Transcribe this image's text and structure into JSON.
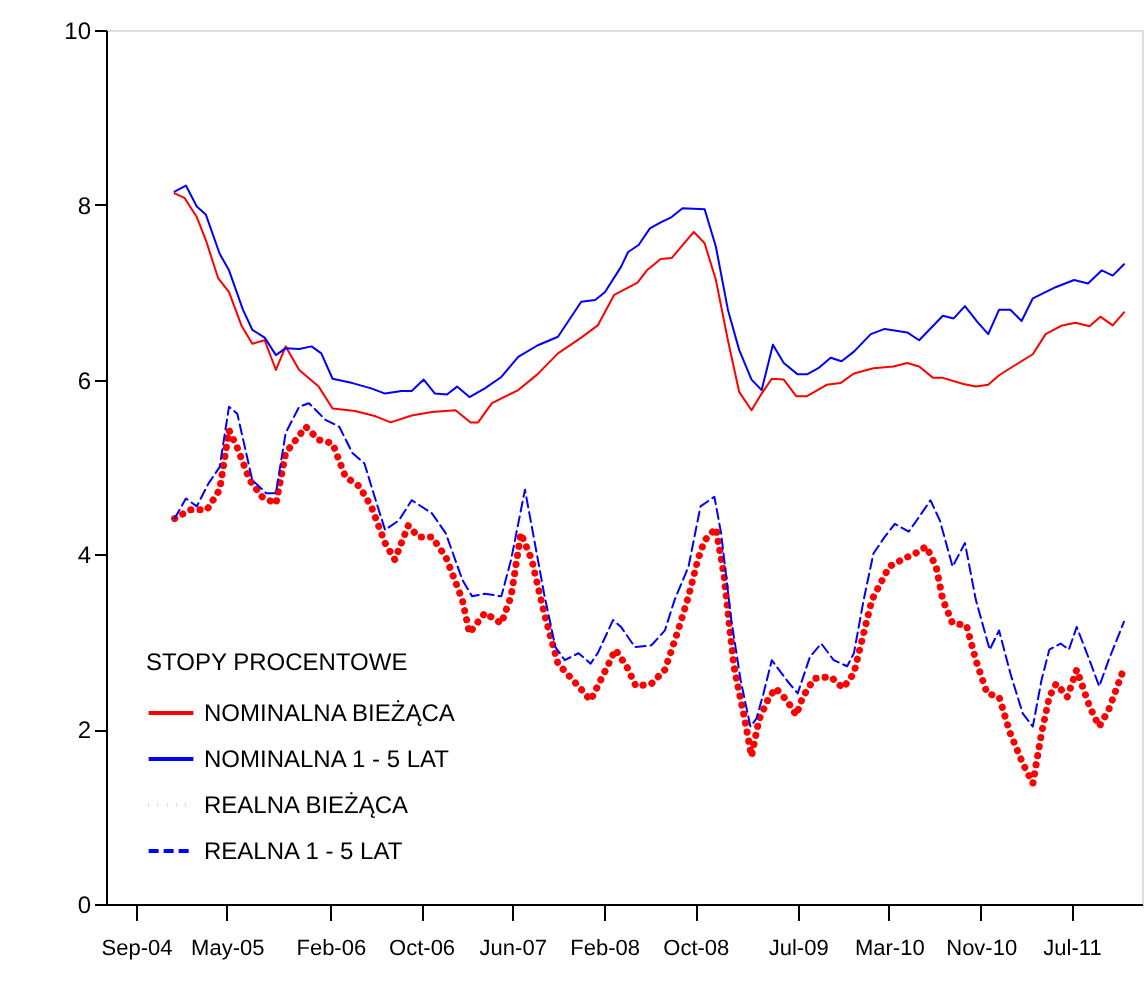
{
  "chart_data": {
    "type": "line",
    "xlim": [
      "2004-06-13",
      "2012-01-05"
    ],
    "xticks": [
      {
        "value": "2004-09-01",
        "label": "Sep-04"
      },
      {
        "value": "2005-05-01",
        "label": "May-05"
      },
      {
        "value": "2006-02-01",
        "label": "Feb-06"
      },
      {
        "value": "2006-10-01",
        "label": "Oct-06"
      },
      {
        "value": "2007-06-01",
        "label": "Jun-07"
      },
      {
        "value": "2008-02-01",
        "label": "Feb-08"
      },
      {
        "value": "2008-10-01",
        "label": "Oct-08"
      },
      {
        "value": "2009-07-01",
        "label": "Jul-09"
      },
      {
        "value": "2010-03-01",
        "label": "Mar-10"
      },
      {
        "value": "2010-11-01",
        "label": "Nov-10"
      },
      {
        "value": "2011-07-01",
        "label": "Jul-11"
      }
    ],
    "ylim": [
      0,
      10
    ],
    "yticks": [
      0,
      2,
      4,
      6,
      8,
      10
    ],
    "grid": false,
    "legend": "bottom left",
    "legend_title": "STOPY PROCENTOWE",
    "series": [
      {
        "name": "NOMINALNA BIEŻĄCA",
        "color": "#ff0000",
        "line_style": "solid",
        "x": [
          "2004-12-13",
          "2005-01-08",
          "2005-02-10",
          "2005-03-06",
          "2005-04-08",
          "2005-05-07",
          "2005-06-09",
          "2005-07-08",
          "2005-08-10",
          "2005-09-09",
          "2005-10-05",
          "2005-11-10",
          "2006-01-01",
          "2006-02-07",
          "2006-04-08",
          "2006-06-02",
          "2006-07-12",
          "2006-09-06",
          "2006-10-30",
          "2007-01-01",
          "2007-02-10",
          "2007-03-02",
          "2007-04-08",
          "2007-06-17",
          "2007-08-07",
          "2007-10-01",
          "2007-12-02",
          "2008-01-15",
          "2008-02-28",
          "2008-04-30",
          "2008-05-25",
          "2008-07-01",
          "2008-07-30",
          "2008-09-27",
          "2008-10-26",
          "2008-11-25",
          "2008-12-27",
          "2009-01-26",
          "2009-02-28",
          "2009-03-27",
          "2009-04-23",
          "2009-05-25",
          "2009-06-27",
          "2009-07-26",
          "2009-09-16",
          "2009-10-23",
          "2009-11-28",
          "2010-01-19",
          "2010-03-13",
          "2010-04-19",
          "2010-05-21",
          "2010-06-27",
          "2010-07-23",
          "2010-09-16",
          "2010-10-19",
          "2010-11-21",
          "2010-12-20",
          "2011-01-26",
          "2011-03-20",
          "2011-04-23",
          "2011-06-06",
          "2011-07-12",
          "2011-08-18",
          "2011-09-16",
          "2011-10-19",
          "2011-11-18"
        ],
        "values": [
          8.13,
          8.08,
          7.86,
          7.6,
          7.16,
          7.0,
          6.62,
          6.41,
          6.45,
          6.11,
          6.38,
          6.11,
          5.92,
          5.67,
          5.64,
          5.58,
          5.51,
          5.59,
          5.63,
          5.65,
          5.51,
          5.51,
          5.73,
          5.88,
          6.06,
          6.3,
          6.48,
          6.62,
          6.97,
          7.11,
          7.25,
          7.38,
          7.39,
          7.69,
          7.56,
          7.14,
          6.45,
          5.86,
          5.65,
          5.84,
          6.01,
          6.0,
          5.81,
          5.81,
          5.94,
          5.96,
          6.07,
          6.13,
          6.15,
          6.19,
          6.15,
          6.02,
          6.02,
          5.95,
          5.92,
          5.94,
          6.05,
          6.15,
          6.29,
          6.52,
          6.62,
          6.65,
          6.61,
          6.72,
          6.62,
          6.77
        ]
      },
      {
        "name": "NOMINALNA 1 - 5 LAT",
        "color": "#0000ff",
        "line_style": "solid",
        "x": [
          "2004-12-13",
          "2005-01-12",
          "2005-02-10",
          "2005-03-06",
          "2005-04-12",
          "2005-05-07",
          "2005-06-13",
          "2005-07-08",
          "2005-08-10",
          "2005-09-09",
          "2005-10-05",
          "2005-11-10",
          "2005-12-13",
          "2006-01-08",
          "2006-02-07",
          "2006-04-01",
          "2006-05-21",
          "2006-06-27",
          "2006-08-10",
          "2006-09-06",
          "2006-10-08",
          "2006-11-07",
          "2006-12-09",
          "2007-01-05",
          "2007-02-07",
          "2007-03-20",
          "2007-05-03",
          "2007-06-17",
          "2007-08-07",
          "2007-10-01",
          "2007-12-02",
          "2008-01-08",
          "2008-02-03",
          "2008-03-17",
          "2008-04-05",
          "2008-05-03",
          "2008-06-02",
          "2008-07-01",
          "2008-07-30",
          "2008-08-28",
          "2008-10-26",
          "2008-11-25",
          "2008-12-27",
          "2009-01-26",
          "2009-02-28",
          "2009-03-27",
          "2009-04-26",
          "2009-05-25",
          "2009-07-01",
          "2009-07-26",
          "2009-08-25",
          "2009-09-27",
          "2009-10-26",
          "2009-11-28",
          "2010-01-12",
          "2010-02-18",
          "2010-04-19",
          "2010-05-21",
          "2010-07-23",
          "2010-08-21",
          "2010-09-20",
          "2010-10-23",
          "2010-11-21",
          "2010-12-20",
          "2011-01-19",
          "2011-02-18",
          "2011-03-20",
          "2011-05-21",
          "2011-07-08",
          "2011-08-14",
          "2011-09-20",
          "2011-10-19",
          "2011-11-18"
        ],
        "values": [
          8.15,
          8.22,
          7.98,
          7.89,
          7.44,
          7.25,
          6.8,
          6.57,
          6.48,
          6.28,
          6.36,
          6.35,
          6.38,
          6.3,
          6.01,
          5.96,
          5.9,
          5.84,
          5.87,
          5.87,
          6.0,
          5.84,
          5.83,
          5.92,
          5.8,
          5.9,
          6.03,
          6.26,
          6.39,
          6.49,
          6.89,
          6.91,
          7.0,
          7.29,
          7.46,
          7.54,
          7.73,
          7.8,
          7.86,
          7.96,
          7.95,
          7.52,
          6.8,
          6.34,
          6.0,
          5.88,
          6.4,
          6.19,
          6.06,
          6.06,
          6.13,
          6.25,
          6.21,
          6.32,
          6.52,
          6.58,
          6.54,
          6.45,
          6.73,
          6.7,
          6.84,
          6.66,
          6.52,
          6.8,
          6.8,
          6.67,
          6.93,
          7.06,
          7.14,
          7.1,
          7.25,
          7.19,
          7.32
        ]
      },
      {
        "name": "REALNA BIEŻĄCA",
        "color": "#ff0000",
        "line_style": "dotted",
        "x": [
          "2004-12-13",
          "2005-01-23",
          "2005-03-09",
          "2005-04-12",
          "2005-05-07",
          "2005-05-29",
          "2005-07-01",
          "2005-08-03",
          "2005-09-09",
          "2005-10-05",
          "2005-11-28",
          "2006-01-01",
          "2006-02-07",
          "2006-03-13",
          "2006-04-19",
          "2006-05-21",
          "2006-06-27",
          "2006-07-23",
          "2006-08-28",
          "2006-09-24",
          "2006-10-30",
          "2006-12-06",
          "2007-01-19",
          "2007-02-07",
          "2007-03-20",
          "2007-05-03",
          "2007-05-29",
          "2007-06-24",
          "2007-07-23",
          "2007-08-25",
          "2007-10-01",
          "2007-11-25",
          "2007-12-27",
          "2008-02-10",
          "2008-03-02",
          "2008-04-01",
          "2008-04-26",
          "2008-06-06",
          "2008-07-12",
          "2008-08-14",
          "2008-09-13",
          "2008-10-08",
          "2008-10-26",
          "2008-11-25",
          "2008-12-16",
          "2009-01-12",
          "2009-02-10",
          "2009-02-28",
          "2009-03-20",
          "2009-04-12",
          "2009-05-03",
          "2009-06-02",
          "2009-06-27",
          "2009-07-15",
          "2009-08-14",
          "2009-09-27",
          "2009-10-30",
          "2009-11-28",
          "2009-12-24",
          "2010-01-15",
          "2010-02-07",
          "2010-03-02",
          "2010-04-05",
          "2010-05-10",
          "2010-06-09",
          "2010-07-05",
          "2010-07-23",
          "2010-08-18",
          "2010-09-24",
          "2010-10-19",
          "2010-11-18",
          "2010-12-20",
          "2011-01-19",
          "2011-02-21",
          "2011-03-20",
          "2011-04-12",
          "2011-05-03",
          "2011-05-21",
          "2011-06-20",
          "2011-07-15",
          "2011-08-18",
          "2011-09-13",
          "2011-10-08",
          "2011-11-14"
        ],
        "values": [
          4.41,
          4.51,
          4.51,
          4.74,
          5.42,
          5.22,
          4.85,
          4.66,
          4.58,
          5.16,
          5.46,
          5.31,
          5.27,
          4.89,
          4.78,
          4.55,
          4.13,
          3.94,
          4.33,
          4.2,
          4.2,
          3.97,
          3.48,
          3.1,
          3.33,
          3.21,
          3.52,
          4.24,
          3.94,
          3.33,
          2.75,
          2.49,
          2.33,
          2.72,
          2.91,
          2.72,
          2.49,
          2.52,
          2.68,
          3.1,
          3.52,
          3.94,
          4.16,
          4.3,
          3.78,
          2.72,
          2.11,
          1.69,
          2.11,
          2.33,
          2.47,
          2.33,
          2.16,
          2.37,
          2.58,
          2.6,
          2.47,
          2.64,
          3.1,
          3.48,
          3.67,
          3.86,
          3.94,
          4.01,
          4.09,
          3.86,
          3.48,
          3.21,
          3.19,
          2.79,
          2.41,
          2.37,
          1.95,
          1.61,
          1.38,
          1.95,
          2.37,
          2.52,
          2.37,
          2.68,
          2.26,
          2.03,
          2.22,
          2.65
        ]
      },
      {
        "name": "REALNA 1 - 5 LAT",
        "color": "#0000ff",
        "line_style": "dashed",
        "x": [
          "2004-12-13",
          "2005-01-12",
          "2005-02-10",
          "2005-03-13",
          "2005-04-12",
          "2005-05-07",
          "2005-05-29",
          "2005-07-08",
          "2005-08-14",
          "2005-09-09",
          "2005-10-05",
          "2005-11-10",
          "2005-12-06",
          "2006-01-19",
          "2006-02-25",
          "2006-04-01",
          "2006-05-03",
          "2006-06-02",
          "2006-06-27",
          "2006-08-03",
          "2006-09-06",
          "2006-10-30",
          "2006-12-06",
          "2007-01-19",
          "2007-02-14",
          "2007-03-20",
          "2007-05-03",
          "2007-05-29",
          "2007-07-05",
          "2007-07-30",
          "2007-08-25",
          "2007-09-24",
          "2007-10-19",
          "2007-11-25",
          "2007-12-27",
          "2008-01-15",
          "2008-02-25",
          "2008-03-17",
          "2008-04-23",
          "2008-06-06",
          "2008-07-12",
          "2008-08-07",
          "2008-09-13",
          "2008-10-15",
          "2008-11-21",
          "2008-12-09",
          "2009-01-05",
          "2009-01-30",
          "2009-02-25",
          "2009-03-13",
          "2009-04-01",
          "2009-04-23",
          "2009-06-02",
          "2009-07-01",
          "2009-08-03",
          "2009-09-02",
          "2009-10-05",
          "2009-11-10",
          "2009-11-28",
          "2009-12-24",
          "2010-01-19",
          "2010-02-18",
          "2010-03-17",
          "2010-04-23",
          "2010-05-21",
          "2010-06-20",
          "2010-07-15",
          "2010-08-18",
          "2010-09-20",
          "2010-10-19",
          "2010-11-25",
          "2010-12-20",
          "2011-01-19",
          "2011-02-21",
          "2011-03-20",
          "2011-04-12",
          "2011-05-03",
          "2011-06-02",
          "2011-06-24",
          "2011-07-15",
          "2011-08-18",
          "2011-09-13",
          "2011-10-08",
          "2011-11-18"
        ],
        "values": [
          4.41,
          4.64,
          4.55,
          4.81,
          5.0,
          5.69,
          5.61,
          4.85,
          4.7,
          4.7,
          5.39,
          5.69,
          5.73,
          5.54,
          5.46,
          5.16,
          5.04,
          4.62,
          4.28,
          4.39,
          4.62,
          4.47,
          4.24,
          3.71,
          3.52,
          3.55,
          3.52,
          3.94,
          4.74,
          4.16,
          3.55,
          2.94,
          2.79,
          2.87,
          2.75,
          2.87,
          3.25,
          3.17,
          2.94,
          2.96,
          3.13,
          3.48,
          3.86,
          4.55,
          4.66,
          4.24,
          3.25,
          2.56,
          2.03,
          2.12,
          2.41,
          2.79,
          2.56,
          2.41,
          2.83,
          2.98,
          2.79,
          2.72,
          2.87,
          3.48,
          4.01,
          4.2,
          4.35,
          4.26,
          4.43,
          4.62,
          4.39,
          3.86,
          4.13,
          3.48,
          2.91,
          3.13,
          2.64,
          2.18,
          2.03,
          2.56,
          2.91,
          2.98,
          2.91,
          3.17,
          2.79,
          2.49,
          2.79,
          3.23
        ]
      }
    ]
  }
}
